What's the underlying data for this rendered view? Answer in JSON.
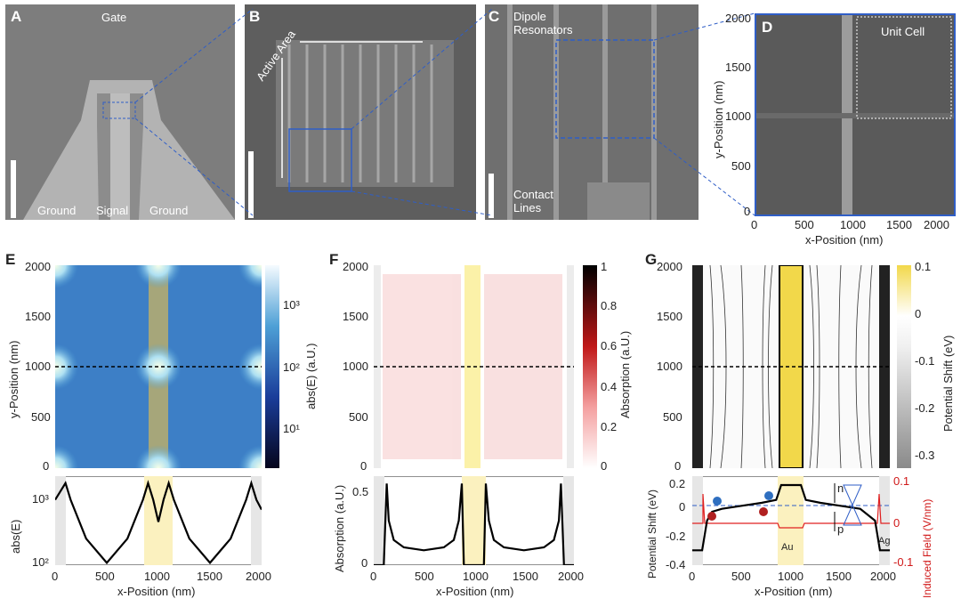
{
  "panels": {
    "A": {
      "label": "A",
      "gate": "Gate",
      "ground_left": "Ground",
      "signal": "Signal",
      "ground_right": "Ground"
    },
    "B": {
      "label": "B",
      "active_area": "Active Area"
    },
    "C": {
      "label": "C",
      "dipole": "Dipole\nResonators",
      "contact": "Contact\nLines"
    },
    "D": {
      "label": "D",
      "unit_cell": "Unit Cell",
      "xlabel": "x-Position (nm)",
      "ylabel": "y-Position (nm)",
      "xticks": [
        "0",
        "500",
        "1000",
        "1500",
        "2000"
      ],
      "yticks": [
        "0",
        "500",
        "1000",
        "1500",
        "2000"
      ]
    },
    "E": {
      "label": "E",
      "xlabel": "x-Position (nm)",
      "ylabel": "y-Position (nm)",
      "colorbar_label": "abs(E) (a.U.)",
      "colorbar_ticks": [
        "10³",
        "10²",
        "10¹"
      ],
      "xticks": [
        "0",
        "500",
        "1000",
        "1500",
        "2000"
      ],
      "yticks": [
        "0",
        "500",
        "1000",
        "1500",
        "2000"
      ],
      "lower_ylabel": "abs(E)",
      "lower_yticks": [
        "10³",
        "10²"
      ]
    },
    "F": {
      "label": "F",
      "ylabel": "y-Position (nm)",
      "colorbar_label": "Absorption (a.U.)",
      "colorbar_ticks": [
        "1",
        "0.8",
        "0.6",
        "0.4",
        "0.2",
        "0"
      ],
      "xlabel": "x-Position (nm)",
      "xticks": [
        "0",
        "500",
        "1000",
        "1500",
        "2000"
      ],
      "yticks": [
        "0",
        "500",
        "1000",
        "1500",
        "2000"
      ],
      "lower_ylabel": "Absorption (a.U.)",
      "lower_yticks": [
        "0.5",
        "0"
      ]
    },
    "G": {
      "label": "G",
      "ylabel": "y-Position (nm)",
      "colorbar_label": "Potential Shift (eV)",
      "colorbar_ticks": [
        "0.1",
        "0",
        "-0.1",
        "-0.2",
        "-0.3"
      ],
      "xlabel": "x-Position (nm)",
      "xticks": [
        "0",
        "500",
        "1000",
        "1500",
        "2000"
      ],
      "yticks": [
        "0",
        "500",
        "1000",
        "1500",
        "2000"
      ],
      "lower_ylabel": "Potential Shift (eV)",
      "lower_ylabel_right": "Induced Field (V/nm)",
      "lower_yticks": [
        "0.2",
        "0",
        "-0.2",
        "-0.4"
      ],
      "lower_yticks_right": [
        "0.1",
        "0",
        "-0.1"
      ],
      "au": "Au",
      "ag": "Ag",
      "n": "n",
      "p": "p"
    }
  },
  "chart_data": [
    {
      "type": "line",
      "panel": "E-lower",
      "xlabel": "x-Position (nm)",
      "ylabel": "abs(E)",
      "log_y": true,
      "x": [
        0,
        100,
        150,
        300,
        500,
        700,
        850,
        900,
        950,
        1000,
        1050,
        1100,
        1150,
        1300,
        1500,
        1700,
        1850,
        1900,
        1950,
        2000
      ],
      "y": [
        1500,
        3000,
        1500,
        300,
        110,
        300,
        1500,
        3000,
        1500,
        600,
        1500,
        3000,
        1500,
        300,
        110,
        300,
        1500,
        3000,
        1500,
        1000
      ],
      "ylim": [
        100,
        4000
      ]
    },
    {
      "type": "line",
      "panel": "F-lower",
      "xlabel": "x-Position (nm)",
      "ylabel": "Absorption (a.U.)",
      "x": [
        0,
        100,
        130,
        150,
        200,
        300,
        500,
        700,
        800,
        850,
        880,
        900,
        1100,
        1120,
        1150,
        1200,
        1300,
        1500,
        1700,
        1800,
        1850,
        1870,
        1900,
        2000
      ],
      "y": [
        0,
        0,
        0.55,
        0.3,
        0.17,
        0.12,
        0.1,
        0.12,
        0.17,
        0.3,
        0.55,
        0,
        0,
        0.55,
        0.3,
        0.17,
        0.12,
        0.1,
        0.12,
        0.17,
        0.3,
        0.55,
        0,
        0
      ],
      "ylim": [
        0,
        0.6
      ]
    },
    {
      "type": "line",
      "panel": "G-lower",
      "xlabel": "x-Position (nm)",
      "ylabel": "Potential Shift (eV)",
      "x": [
        0,
        100,
        150,
        200,
        300,
        500,
        700,
        850,
        880,
        900,
        1100,
        1120,
        1150,
        1300,
        1500,
        1700,
        1850,
        1900,
        2000
      ],
      "y": [
        -0.3,
        -0.3,
        -0.1,
        -0.04,
        -0.02,
        0,
        0.02,
        0.04,
        0.1,
        0.14,
        0.14,
        0.1,
        0.04,
        0.02,
        0,
        -0.02,
        -0.1,
        -0.3,
        -0.3
      ],
      "ylim": [
        -0.4,
        0.2
      ]
    }
  ]
}
